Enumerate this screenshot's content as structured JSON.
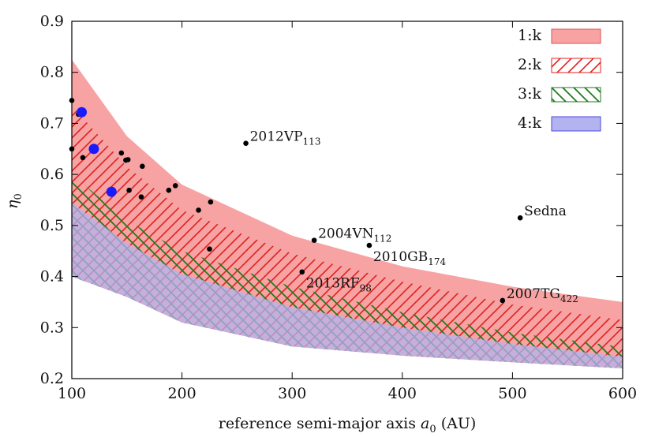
{
  "chart_data": {
    "type": "scatter",
    "xlabel": "reference semi-major axis a0 (AU)",
    "ylabel": "η0",
    "xlim": [
      100,
      600
    ],
    "ylim": [
      0.2,
      0.9
    ],
    "x_ticks": [
      "100",
      "200",
      "300",
      "400",
      "500",
      "600"
    ],
    "y_ticks": [
      "0.2",
      "0.3",
      "0.4",
      "0.5",
      "0.6",
      "0.7",
      "0.8",
      "0.9"
    ],
    "grid": false,
    "legend_position": "top-right",
    "bands": [
      {
        "name": "1:k",
        "fill": "solid",
        "color": "#f7a3a3",
        "upper": [
          [
            100,
            0.825
          ],
          [
            150,
            0.675
          ],
          [
            200,
            0.58
          ],
          [
            300,
            0.48
          ],
          [
            400,
            0.42
          ],
          [
            500,
            0.38
          ],
          [
            600,
            0.35
          ]
        ],
        "lower": [
          [
            100,
            0.4
          ],
          [
            150,
            0.36
          ],
          [
            200,
            0.31
          ],
          [
            300,
            0.263
          ],
          [
            400,
            0.245
          ],
          [
            500,
            0.232
          ],
          [
            600,
            0.22
          ]
        ]
      },
      {
        "name": "2:k",
        "fill": "hatch-forward",
        "color": "#e0201f",
        "upper": [
          [
            100,
            0.735
          ],
          [
            150,
            0.615
          ],
          [
            200,
            0.53
          ],
          [
            300,
            0.445
          ],
          [
            400,
            0.39
          ],
          [
            500,
            0.345
          ],
          [
            600,
            0.315
          ]
        ],
        "lower": [
          [
            100,
            0.4
          ],
          [
            150,
            0.36
          ],
          [
            200,
            0.31
          ],
          [
            300,
            0.263
          ],
          [
            400,
            0.245
          ],
          [
            500,
            0.232
          ],
          [
            600,
            0.22
          ]
        ]
      },
      {
        "name": "3:k",
        "fill": "hatch-backward",
        "color": "#1f7a1f",
        "upper": [
          [
            100,
            0.6
          ],
          [
            150,
            0.51
          ],
          [
            200,
            0.45
          ],
          [
            300,
            0.38
          ],
          [
            400,
            0.33
          ],
          [
            500,
            0.29
          ],
          [
            600,
            0.262
          ]
        ],
        "lower": [
          [
            100,
            0.4
          ],
          [
            150,
            0.36
          ],
          [
            200,
            0.31
          ],
          [
            300,
            0.263
          ],
          [
            400,
            0.245
          ],
          [
            500,
            0.232
          ],
          [
            600,
            0.22
          ]
        ]
      },
      {
        "name": "4:k",
        "fill": "solid",
        "color": "#b3b3f0",
        "upper": [
          [
            100,
            0.545
          ],
          [
            150,
            0.465
          ],
          [
            200,
            0.405
          ],
          [
            300,
            0.34
          ],
          [
            400,
            0.3
          ],
          [
            500,
            0.268
          ],
          [
            600,
            0.243
          ]
        ],
        "lower": [
          [
            100,
            0.4
          ],
          [
            150,
            0.36
          ],
          [
            200,
            0.31
          ],
          [
            300,
            0.263
          ],
          [
            400,
            0.245
          ],
          [
            500,
            0.232
          ],
          [
            600,
            0.22
          ]
        ]
      }
    ],
    "black_points": [
      {
        "x": 100,
        "y": 0.745
      },
      {
        "x": 100,
        "y": 0.65
      },
      {
        "x": 106,
        "y": 0.718
      },
      {
        "x": 110,
        "y": 0.633
      },
      {
        "x": 120,
        "y": 0.648
      },
      {
        "x": 136,
        "y": 0.566
      },
      {
        "x": 145,
        "y": 0.642
      },
      {
        "x": 149,
        "y": 0.628
      },
      {
        "x": 151,
        "y": 0.629
      },
      {
        "x": 152,
        "y": 0.569
      },
      {
        "x": 163,
        "y": 0.556
      },
      {
        "x": 164,
        "y": 0.616
      },
      {
        "x": 188,
        "y": 0.569
      },
      {
        "x": 194,
        "y": 0.578
      },
      {
        "x": 215,
        "y": 0.53
      },
      {
        "x": 225,
        "y": 0.454
      },
      {
        "x": 226,
        "y": 0.546
      },
      {
        "x": 258,
        "y": 0.661,
        "label": "2012VP",
        "sub": "113",
        "anchor": "right-up"
      },
      {
        "x": 309,
        "y": 0.409,
        "label": "2013RF",
        "sub": "98",
        "anchor": "right-down"
      },
      {
        "x": 320,
        "y": 0.471,
        "label": "2004VN",
        "sub": "112",
        "anchor": "right-up"
      },
      {
        "x": 370,
        "y": 0.461,
        "label": "2010GB",
        "sub": "174",
        "anchor": "right-down"
      },
      {
        "x": 491,
        "y": 0.353,
        "label": "2007TG",
        "sub": "422",
        "anchor": "right-up"
      },
      {
        "x": 507,
        "y": 0.515,
        "label": "Sedna",
        "sub": "",
        "anchor": "right-up"
      }
    ],
    "blue_points": [
      {
        "x": 109,
        "y": 0.722
      },
      {
        "x": 120,
        "y": 0.65
      },
      {
        "x": 136,
        "y": 0.566
      }
    ],
    "colors": {
      "black_point": "#000000",
      "blue_point": "#1a1aff",
      "axis": "#000000"
    }
  }
}
